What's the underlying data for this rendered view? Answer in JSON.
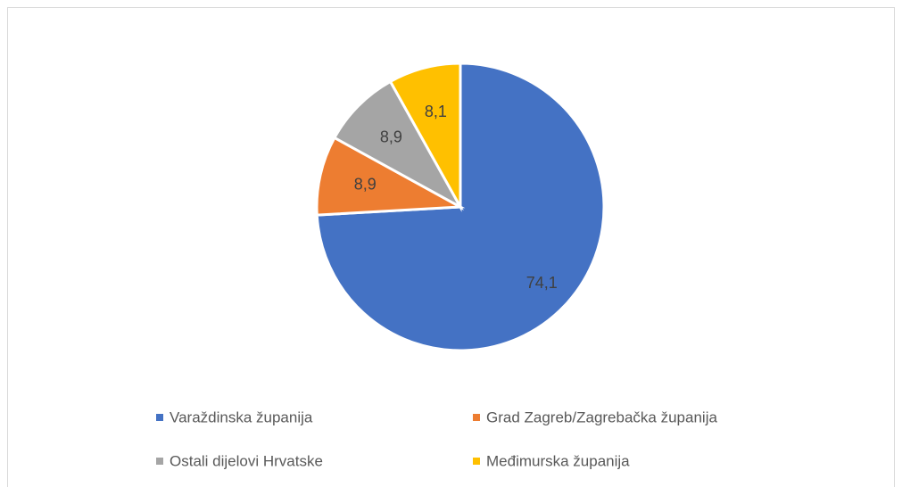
{
  "chart_data": {
    "type": "pie",
    "categories": [
      "Varaždinska županija",
      "Grad Zagreb/Zagrebačka županija",
      "Ostali dijelovi Hrvatske",
      "Međimurska županija"
    ],
    "values": [
      74.1,
      8.9,
      8.9,
      8.1
    ],
    "value_labels": [
      "74,1",
      "8,9",
      "8,9",
      "8,1"
    ],
    "colors": [
      "#4472c4",
      "#ed7d31",
      "#a5a5a5",
      "#ffc000"
    ],
    "legend": "bottom"
  }
}
